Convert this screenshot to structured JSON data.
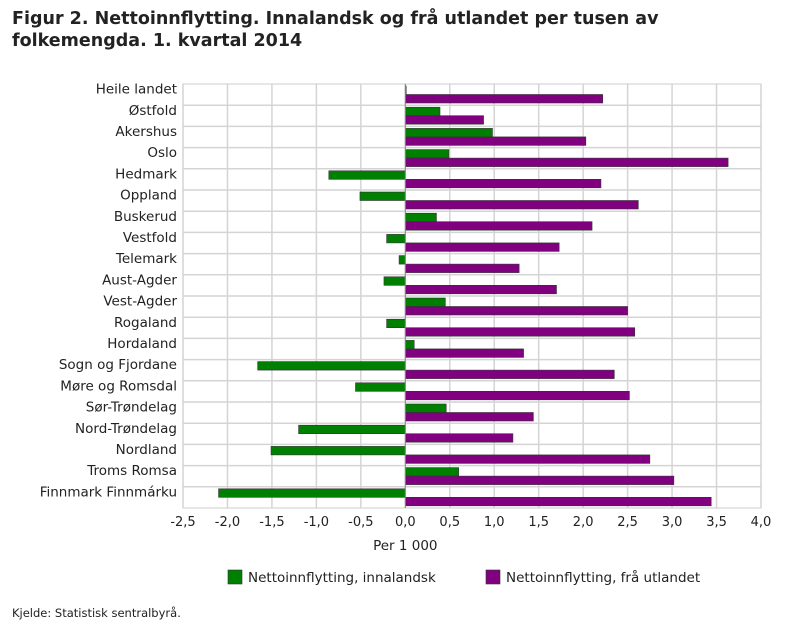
{
  "chart_data": {
    "type": "bar",
    "orientation": "horizontal",
    "title": "Figur 2. Nettoinnflytting. Innalandsk og frå utlandet per tusen av folkemengda. 1. kvartal 2014",
    "xlabel": "Per 1 000",
    "xlim": [
      -2.5,
      4.0
    ],
    "xticks": [
      "-2,5",
      "-2,0",
      "-1,5",
      "-1,0",
      "-0,5",
      "0,0",
      "0,5",
      "1,0",
      "1,5",
      "2,0",
      "2,5",
      "3,0",
      "3,5",
      "4,0"
    ],
    "grid": true,
    "legend_position": "bottom",
    "categories": [
      "Heile landet",
      "Østfold",
      "Akershus",
      "Oslo",
      "Hedmark",
      "Oppland",
      "Buskerud",
      "Vestfold",
      "Telemark",
      "Aust-Agder",
      "Vest-Agder",
      "Rogaland",
      "Hordaland",
      "Sogn og Fjordane",
      "Møre og Romsdal",
      "Sør-Trøndelag",
      "Nord-Trøndelag",
      "Nordland",
      "Troms Romsa",
      "Finnmark Finnmárku"
    ],
    "series": [
      {
        "name": "Nettoinnflytting, innalandsk",
        "color": "#008000",
        "values": [
          0.01,
          0.39,
          0.98,
          0.49,
          -0.86,
          -0.51,
          0.35,
          -0.21,
          -0.07,
          -0.24,
          0.45,
          -0.21,
          0.1,
          -1.66,
          -0.56,
          0.46,
          -1.2,
          -1.51,
          0.6,
          -2.1
        ]
      },
      {
        "name": "Nettoinnflytting, frå utlandet",
        "color": "#800080",
        "values": [
          2.22,
          0.88,
          2.03,
          3.63,
          2.2,
          2.62,
          2.1,
          1.73,
          1.28,
          1.7,
          2.5,
          2.58,
          1.33,
          2.35,
          2.52,
          1.44,
          1.21,
          2.75,
          3.02,
          3.44
        ]
      }
    ]
  },
  "source": "Kjelde: Statistisk sentralbyrå."
}
